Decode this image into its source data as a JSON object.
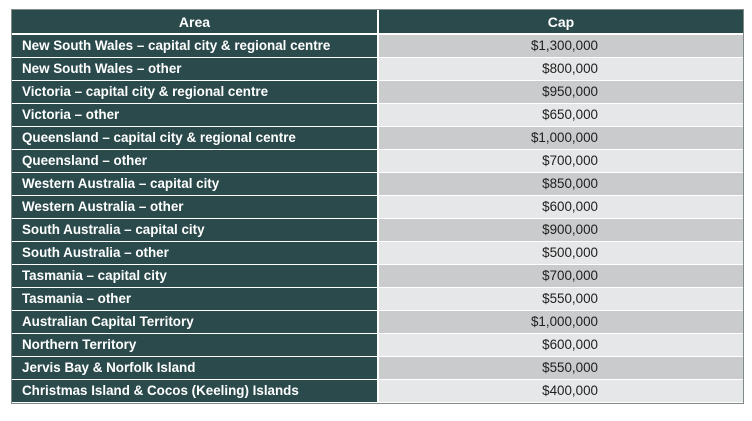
{
  "table": {
    "headers": {
      "area": "Area",
      "cap": "Cap"
    },
    "rows": [
      {
        "area": "New South Wales – capital city & regional centre",
        "cap": "$1,300,000"
      },
      {
        "area": "New South Wales – other",
        "cap": "$800,000"
      },
      {
        "area": "Victoria – capital city & regional centre",
        "cap": "$950,000"
      },
      {
        "area": "Victoria – other",
        "cap": "$650,000"
      },
      {
        "area": "Queensland – capital city & regional centre",
        "cap": "$1,000,000"
      },
      {
        "area": "Queensland – other",
        "cap": "$700,000"
      },
      {
        "area": "Western Australia – capital city",
        "cap": "$850,000"
      },
      {
        "area": "Western Australia – other",
        "cap": "$600,000"
      },
      {
        "area": "South Australia – capital city",
        "cap": "$900,000"
      },
      {
        "area": "South Australia – other",
        "cap": "$500,000"
      },
      {
        "area": "Tasmania – capital city",
        "cap": "$700,000"
      },
      {
        "area": "Tasmania – other",
        "cap": "$550,000"
      },
      {
        "area": "Australian Capital Territory",
        "cap": "$1,000,000"
      },
      {
        "area": "Northern Territory",
        "cap": "$600,000"
      },
      {
        "area": "Jervis Bay & Norfolk Island",
        "cap": "$550,000"
      },
      {
        "area": "Christmas Island & Cocos (Keeling) Islands",
        "cap": "$400,000"
      }
    ],
    "colors": {
      "header_bg": "#2b4a4c",
      "row_shade": "#c9cbcc",
      "row_plain": "#e6e7e8"
    }
  }
}
